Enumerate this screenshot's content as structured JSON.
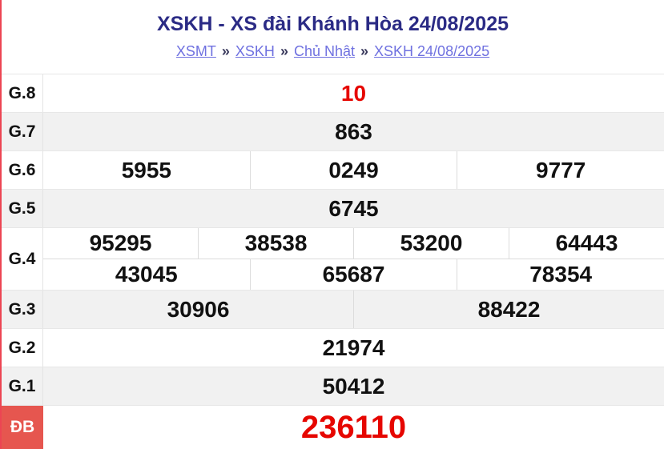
{
  "page": {
    "title": "XSKH - XS đài Khánh Hòa 24/08/2025",
    "breadcrumb_separator": "»",
    "breadcrumb": [
      {
        "label": "XSMT"
      },
      {
        "label": "XSKH"
      },
      {
        "label": "Chủ Nhật"
      },
      {
        "label": "XSKH 24/08/2025"
      }
    ]
  },
  "colors": {
    "accent_red_number": "#e60600",
    "special_label_bg": "#e6564f",
    "left_page_border": "#ec4553",
    "title_navy": "#2b2b85",
    "link_purple": "#6f71e0",
    "alt_row_bg": "#f1f1f1"
  },
  "results": {
    "rows": [
      {
        "label": "G.8",
        "numbers": [
          "10"
        ]
      },
      {
        "label": "G.7",
        "numbers": [
          "863"
        ]
      },
      {
        "label": "G.6",
        "numbers": [
          "5955",
          "0249",
          "9777"
        ]
      },
      {
        "label": "G.5",
        "numbers": [
          "6745"
        ]
      },
      {
        "label": "G.4",
        "line1": [
          "95295",
          "38538",
          "53200",
          "64443"
        ],
        "line2": [
          "43045",
          "65687",
          "78354"
        ]
      },
      {
        "label": "G.3",
        "numbers": [
          "30906",
          "88422"
        ]
      },
      {
        "label": "G.2",
        "numbers": [
          "21974"
        ]
      },
      {
        "label": "G.1",
        "numbers": [
          "50412"
        ]
      },
      {
        "label": "ĐB",
        "numbers": [
          "236110"
        ]
      }
    ]
  }
}
